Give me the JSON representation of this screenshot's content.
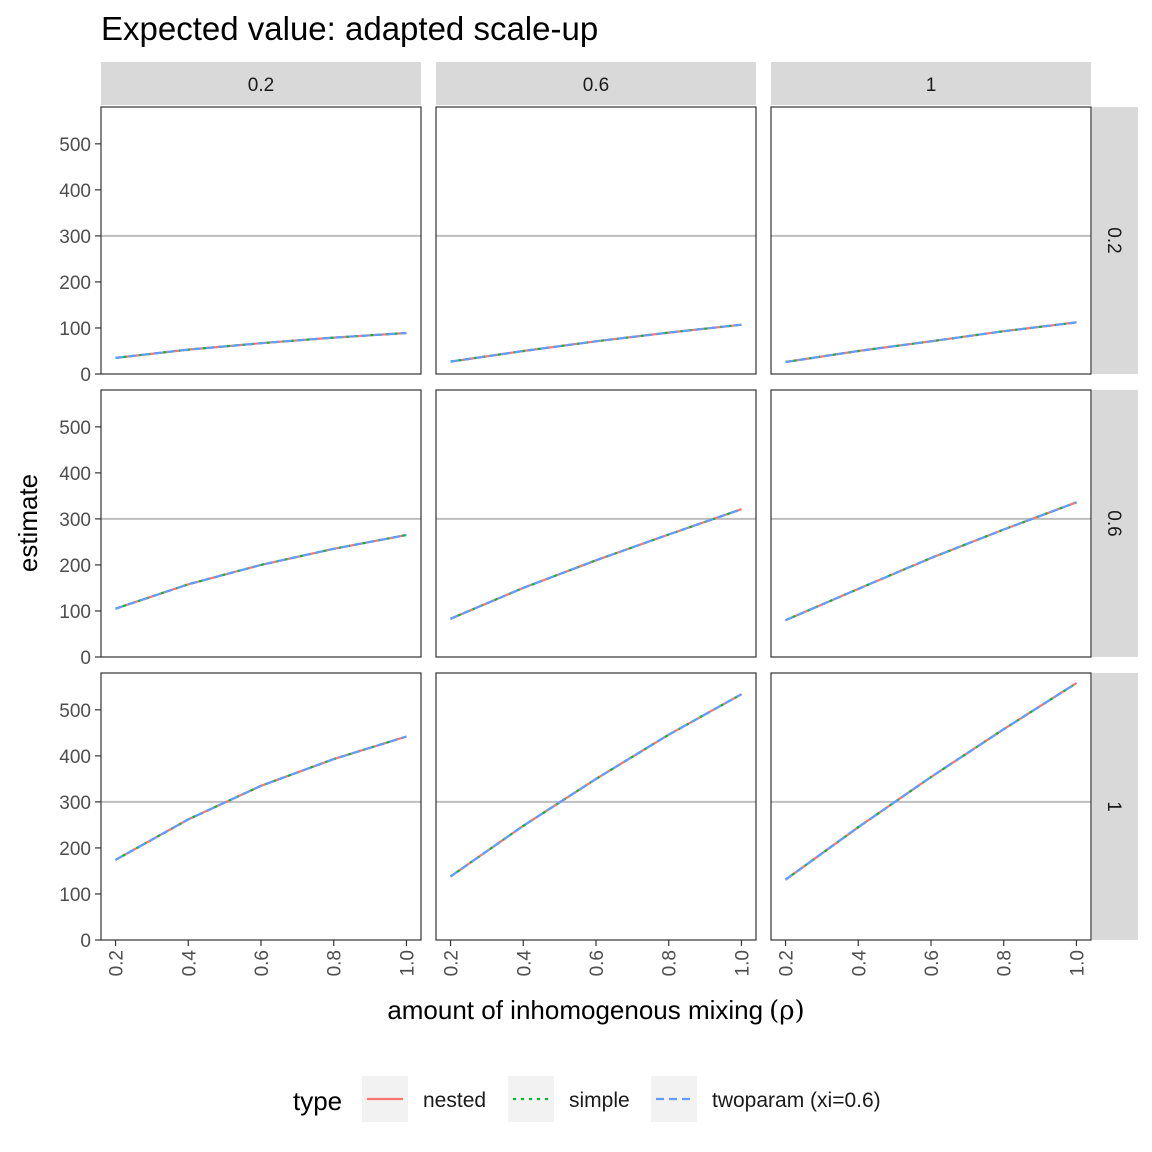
{
  "chart_data": {
    "type": "line",
    "title": "Expected value: adapted scale-up",
    "xlabel": "amount of inhomogenous mixing",
    "xlabel_symbol": "(ρ)",
    "ylabel": "estimate",
    "facet_cols": [
      "0.2",
      "0.6",
      "1"
    ],
    "facet_rows": [
      "0.2",
      "0.6",
      "1"
    ],
    "x": [
      0.2,
      0.4,
      0.6,
      0.8,
      1.0
    ],
    "x_tick_labels": [
      "0.2",
      "0.4",
      "0.6",
      "0.8",
      "1.0"
    ],
    "xlim": [
      0.16,
      1.04
    ],
    "ylim": [
      0,
      580
    ],
    "y_ticks": [
      0,
      100,
      200,
      300,
      400,
      500
    ],
    "reference_line": 300,
    "grid": false,
    "legend": {
      "title": "type",
      "position": "bottom",
      "entries": [
        {
          "label": "nested",
          "color": "#F8766D",
          "dash": "solid"
        },
        {
          "label": "simple",
          "color": "#00BA38",
          "dash": "dotted"
        },
        {
          "label": "twoparam (xi=0.6)",
          "color": "#619CFF",
          "dash": "dashed"
        }
      ]
    },
    "panels": [
      {
        "row": "0.2",
        "col": "0.2",
        "values": [
          35,
          53,
          67,
          79,
          89
        ]
      },
      {
        "row": "0.2",
        "col": "0.6",
        "values": [
          27,
          50,
          71,
          90,
          107
        ]
      },
      {
        "row": "0.2",
        "col": "1",
        "values": [
          26,
          50,
          71,
          93,
          112
        ]
      },
      {
        "row": "0.6",
        "col": "0.2",
        "values": [
          105,
          158,
          200,
          235,
          265
        ]
      },
      {
        "row": "0.6",
        "col": "0.6",
        "values": [
          83,
          150,
          210,
          266,
          321
        ]
      },
      {
        "row": "0.6",
        "col": "1",
        "values": [
          80,
          148,
          215,
          277,
          336
        ]
      },
      {
        "row": "1",
        "col": "0.2",
        "values": [
          174,
          262,
          335,
          393,
          442
        ]
      },
      {
        "row": "1",
        "col": "0.6",
        "values": [
          138,
          248,
          350,
          446,
          534
        ]
      },
      {
        "row": "1",
        "col": "1",
        "values": [
          131,
          245,
          354,
          458,
          558
        ]
      }
    ]
  }
}
